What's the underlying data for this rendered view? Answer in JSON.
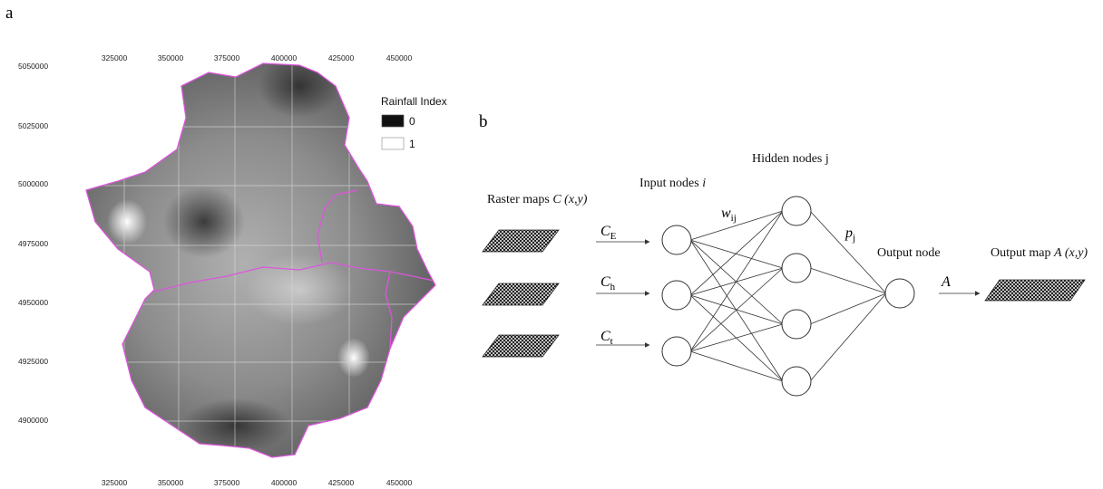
{
  "panel_a": {
    "label": "a",
    "legend": {
      "title": "Rainfall Index",
      "items": [
        {
          "label": "0",
          "color": "#111111"
        },
        {
          "label": "1",
          "color": "#ffffff"
        }
      ]
    },
    "x_ticks": [
      "325000",
      "350000",
      "375000",
      "400000",
      "425000",
      "450000"
    ],
    "y_ticks": [
      "5050000",
      "5025000",
      "5000000",
      "4975000",
      "4950000",
      "4925000",
      "4900000"
    ],
    "boundary_color": "#dd55dd"
  },
  "panel_b": {
    "label": "b",
    "raster_label": {
      "text": "Raster maps ",
      "var": "C",
      "args": " (x,y)"
    },
    "input_label": {
      "text": "Input nodes ",
      "var": "i"
    },
    "hidden_label": "Hidden nodes j",
    "output_node_label": "Output node",
    "output_map_label": {
      "text": "Output map ",
      "var": "A",
      "args": " (x,y)"
    },
    "inputs": [
      {
        "sym": "C",
        "sub": "E"
      },
      {
        "sym": "C",
        "sub": "h"
      },
      {
        "sym": "C",
        "sub": "t"
      }
    ],
    "weight_label": {
      "sym": "w",
      "sub": "ij"
    },
    "hidden_output_label": {
      "sym": "p",
      "sub": "j"
    },
    "output_label": "A",
    "hidden_count": 4
  }
}
